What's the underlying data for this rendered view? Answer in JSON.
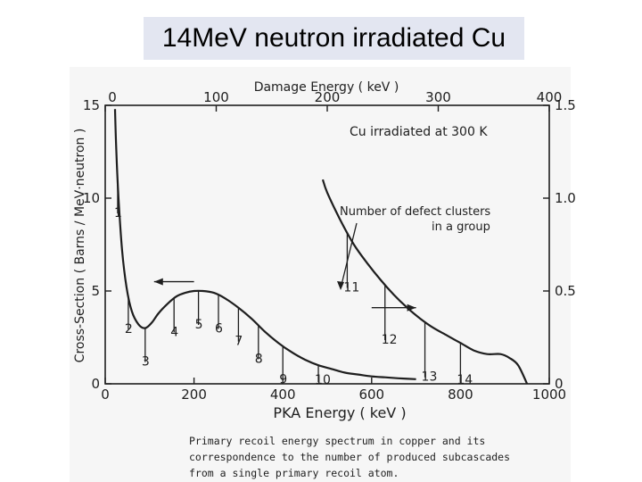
{
  "slide_title": "14MeV neutron irradiated Cu",
  "caption": [
    "Primary recoil energy spectrum in copper and its",
    "correspondence to the number of produced subcascades",
    "from a single primary recoil atom."
  ],
  "chart_data": {
    "type": "line",
    "title": "Cu irradiated at 300 K",
    "xlabel": "PKA Energy ( keV )",
    "ylabel": "Cross-Section ( Barns / MeV·neutron )",
    "x_top_label": "Damage Energy ( keV )",
    "xlim": [
      0,
      1000
    ],
    "ylim": [
      0,
      15
    ],
    "x_ticks": [
      "0",
      "200",
      "400",
      "600",
      "800",
      "1000"
    ],
    "y_ticks": [
      "0",
      "5",
      "10",
      "15"
    ],
    "x_top_ticks": [
      "0",
      "100",
      "200",
      "300",
      "400"
    ],
    "y_right_ticks": [
      "0",
      "0.5",
      "1.0",
      "1.5"
    ],
    "series": [
      {
        "curve": "pka_spectrum",
        "x": [
          22,
          25,
          30,
          38,
          48,
          60,
          75,
          90,
          105,
          120,
          140,
          160,
          180,
          200,
          220,
          245,
          270,
          300,
          330,
          360,
          390,
          420,
          450,
          480,
          510,
          540,
          570,
          600,
          630,
          660,
          700
        ],
        "values": [
          14.8,
          12.5,
          10.0,
          7.2,
          5.2,
          3.9,
          3.2,
          3.0,
          3.3,
          3.8,
          4.3,
          4.7,
          4.9,
          5.0,
          5.0,
          4.9,
          4.6,
          4.1,
          3.5,
          2.8,
          2.2,
          1.7,
          1.3,
          1.0,
          0.8,
          0.6,
          0.5,
          0.4,
          0.35,
          0.3,
          0.25
        ]
      },
      {
        "curve": "defect_cluster_number",
        "x": [
          490,
          500,
          530,
          560,
          590,
          620,
          650,
          680,
          710,
          740,
          770,
          800,
          830,
          860,
          890,
          910,
          930,
          950
        ],
        "values": [
          11.0,
          10.3,
          8.8,
          7.5,
          6.5,
          5.6,
          4.8,
          4.1,
          3.5,
          3.0,
          2.6,
          2.2,
          1.8,
          1.6,
          1.6,
          1.4,
          1.0,
          0.0
        ]
      }
    ],
    "cluster_marks": [
      {
        "label": "1",
        "x": 28
      },
      {
        "label": "2",
        "x": 52
      },
      {
        "label": "3",
        "x": 90
      },
      {
        "label": "4",
        "x": 155
      },
      {
        "label": "5",
        "x": 210
      },
      {
        "label": "6",
        "x": 255
      },
      {
        "label": "7",
        "x": 300
      },
      {
        "label": "8",
        "x": 345
      },
      {
        "label": "9",
        "x": 400
      },
      {
        "label": "10",
        "x": 480
      },
      {
        "label": "11",
        "x": 545
      },
      {
        "label": "12",
        "x": 630
      },
      {
        "label": "13",
        "x": 720
      },
      {
        "label": "14",
        "x": 800
      }
    ],
    "annotation": [
      "Number of defect clusters",
      "in a group"
    ],
    "arrows": [
      {
        "direction": "left",
        "x_from": 200,
        "x_to": 110,
        "y": 5.5
      },
      {
        "direction": "right",
        "x_from": 600,
        "x_to": 700,
        "y": 4.1
      }
    ],
    "grid": false,
    "legend": "none"
  }
}
